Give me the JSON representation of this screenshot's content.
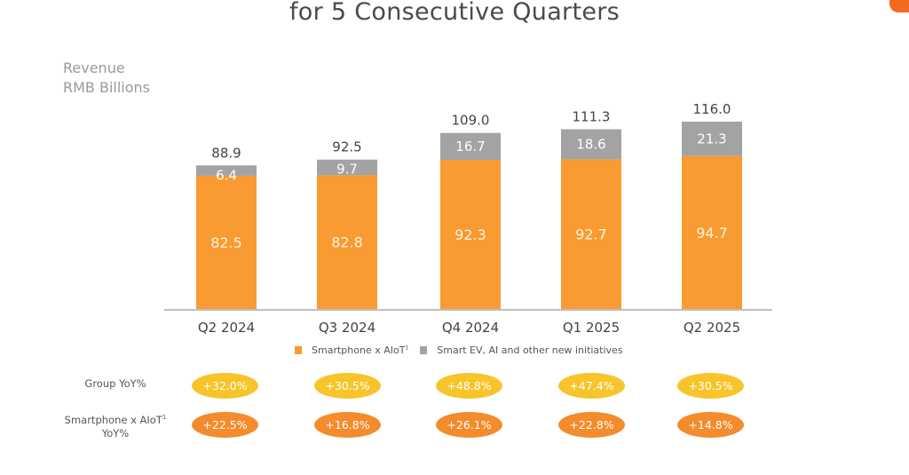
{
  "header": {
    "title": "for 5 Consecutive Quarters"
  },
  "colors": {
    "smartphone": "#f99a32",
    "ev": "#a3a3a3",
    "group_pill": "#f7c42b",
    "smartphone_pill": "#f48b2c",
    "badge": "#f26a1f"
  },
  "chart_data": {
    "type": "bar",
    "stacked": true,
    "title": "for 5 Consecutive Quarters",
    "ylabel_lines": [
      "Revenue",
      "RMB Billions"
    ],
    "xlabel": "",
    "categories": [
      "Q2 2024",
      "Q3 2024",
      "Q4 2024",
      "Q1 2025",
      "Q2 2025"
    ],
    "series": [
      {
        "name": "Smartphone x AIoT",
        "superscript": "1",
        "values": [
          82.5,
          82.8,
          92.3,
          92.7,
          94.7
        ]
      },
      {
        "name": "Smart EV, AI and other new initiatives",
        "values": [
          6.4,
          9.7,
          16.7,
          18.6,
          21.3
        ]
      }
    ],
    "totals": [
      "88.9",
      "92.5",
      "109.0",
      "111.3",
      "116.0"
    ],
    "segment_labels": {
      "smartphone": [
        "82.5",
        "82.8",
        "92.3",
        "92.7",
        "94.7"
      ],
      "ev": [
        "6.4",
        "9.7",
        "16.7",
        "18.6",
        "21.3"
      ]
    },
    "ylim": [
      0,
      116
    ],
    "grid": false,
    "legend_position": "bottom-center"
  },
  "legend": {
    "smartphone_label": "Smartphone x AIoT",
    "smartphone_sup": "1",
    "ev_label": "Smart EV, AI and other new initiatives"
  },
  "yoy": {
    "group_label": "Group YoY%",
    "smartphone_label_line1": "Smartphone x AIoT",
    "smartphone_label_sup": "1",
    "smartphone_label_line2": "YoY%",
    "group": [
      "+32.0%",
      "+30.5%",
      "+48.8%",
      "+47.4%",
      "+30.5%"
    ],
    "smartphone": [
      "+22.5%",
      "+16.8%",
      "+26.1%",
      "+22.8%",
      "+14.8%"
    ]
  }
}
